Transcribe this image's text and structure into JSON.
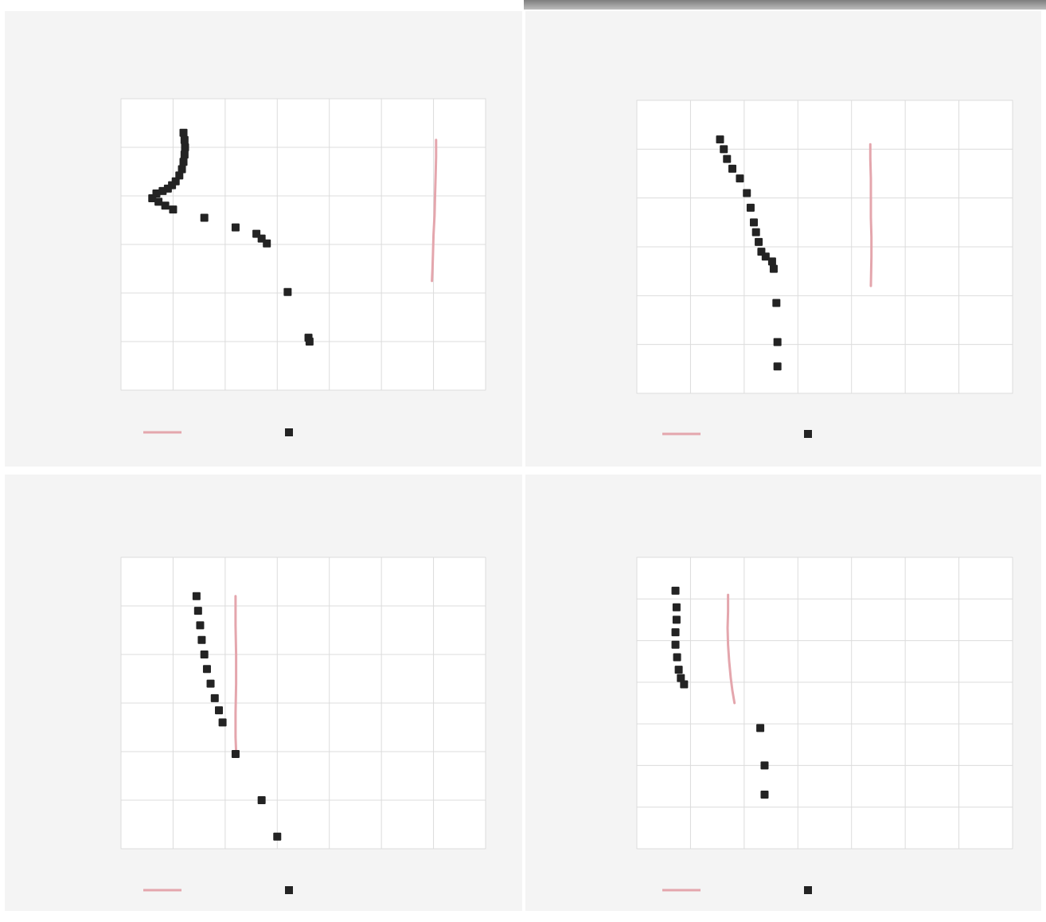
{
  "colors": {
    "model": "#e4a6ad",
    "observed": "#232323"
  },
  "chart_data": [
    {
      "type": "scatter",
      "title": "",
      "xlabel": "",
      "ylabel": "",
      "xlim": [
        0,
        7
      ],
      "ylim": [
        0,
        6
      ],
      "legend_position": "bottom",
      "series": [
        {
          "name": "",
          "style": "line",
          "x": [
            6.05,
            6.05,
            6.04,
            6.03,
            6.02,
            6.0,
            5.99,
            5.98,
            5.97
          ],
          "y": [
            5.15,
            4.8,
            4.4,
            4.0,
            3.6,
            3.2,
            2.8,
            2.5,
            2.25
          ]
        },
        {
          "name": "",
          "style": "points",
          "x": [
            1.2,
            1.22,
            1.23,
            1.22,
            1.2,
            1.17,
            1.12,
            1.05,
            0.98,
            0.9,
            0.8,
            0.68,
            0.6,
            0.72,
            0.85,
            1.0,
            1.6,
            2.2,
            2.6,
            2.7,
            2.8,
            3.2,
            3.6,
            3.62
          ],
          "y": [
            5.3,
            5.15,
            5.0,
            4.85,
            4.7,
            4.55,
            4.42,
            4.3,
            4.22,
            4.15,
            4.1,
            4.05,
            3.95,
            3.88,
            3.8,
            3.72,
            3.55,
            3.35,
            3.22,
            3.12,
            3.02,
            2.02,
            1.08,
            1.0
          ]
        }
      ]
    },
    {
      "type": "scatter",
      "title": "",
      "xlabel": "",
      "ylabel": "",
      "xlim": [
        0,
        7
      ],
      "ylim": [
        0,
        6
      ],
      "legend_position": "bottom",
      "series": [
        {
          "name": "",
          "style": "line",
          "x": [
            4.35,
            4.35,
            4.36,
            4.36,
            4.36,
            4.37,
            4.37,
            4.36
          ],
          "y": [
            5.1,
            4.8,
            4.4,
            4.0,
            3.6,
            3.2,
            2.8,
            2.2
          ]
        },
        {
          "name": "",
          "style": "points",
          "x": [
            1.55,
            1.62,
            1.68,
            1.78,
            1.92,
            2.05,
            2.12,
            2.18,
            2.22,
            2.27,
            2.32,
            2.4,
            2.52,
            2.55,
            2.6,
            2.62,
            2.62
          ],
          "y": [
            5.2,
            5.0,
            4.8,
            4.6,
            4.4,
            4.1,
            3.8,
            3.5,
            3.3,
            3.1,
            2.9,
            2.8,
            2.7,
            2.55,
            1.85,
            1.05,
            0.55
          ]
        }
      ]
    },
    {
      "type": "scatter",
      "title": "",
      "xlabel": "",
      "ylabel": "",
      "xlim": [
        0,
        7
      ],
      "ylim": [
        0,
        6
      ],
      "legend_position": "bottom",
      "series": [
        {
          "name": "",
          "style": "line",
          "x": [
            2.2,
            2.2,
            2.21,
            2.21,
            2.2,
            2.2,
            2.21
          ],
          "y": [
            5.2,
            4.6,
            4.0,
            3.4,
            2.8,
            2.3,
            2.0
          ]
        },
        {
          "name": "",
          "style": "points",
          "x": [
            1.45,
            1.48,
            1.52,
            1.55,
            1.6,
            1.65,
            1.72,
            1.8,
            1.88,
            1.95,
            2.2,
            2.7,
            3.0
          ],
          "y": [
            5.2,
            4.9,
            4.6,
            4.3,
            4.0,
            3.7,
            3.4,
            3.1,
            2.85,
            2.6,
            1.95,
            1.0,
            0.25
          ]
        }
      ]
    },
    {
      "type": "scatter",
      "title": "",
      "xlabel": "",
      "ylabel": "",
      "xlim": [
        0,
        7
      ],
      "ylim": [
        0,
        7
      ],
      "legend_position": "bottom",
      "series": [
        {
          "name": "",
          "style": "line",
          "x": [
            1.7,
            1.7,
            1.69,
            1.7,
            1.72,
            1.75,
            1.78,
            1.82
          ],
          "y": [
            6.1,
            5.7,
            5.3,
            4.9,
            4.5,
            4.1,
            3.8,
            3.5
          ]
        },
        {
          "name": "",
          "style": "points",
          "x": [
            0.72,
            0.74,
            0.74,
            0.72,
            0.72,
            0.75,
            0.78,
            0.82,
            0.88,
            2.3,
            2.38,
            2.38
          ],
          "y": [
            6.2,
            5.8,
            5.5,
            5.2,
            4.9,
            4.6,
            4.3,
            4.1,
            3.95,
            2.9,
            2.0,
            1.3
          ]
        }
      ]
    }
  ]
}
